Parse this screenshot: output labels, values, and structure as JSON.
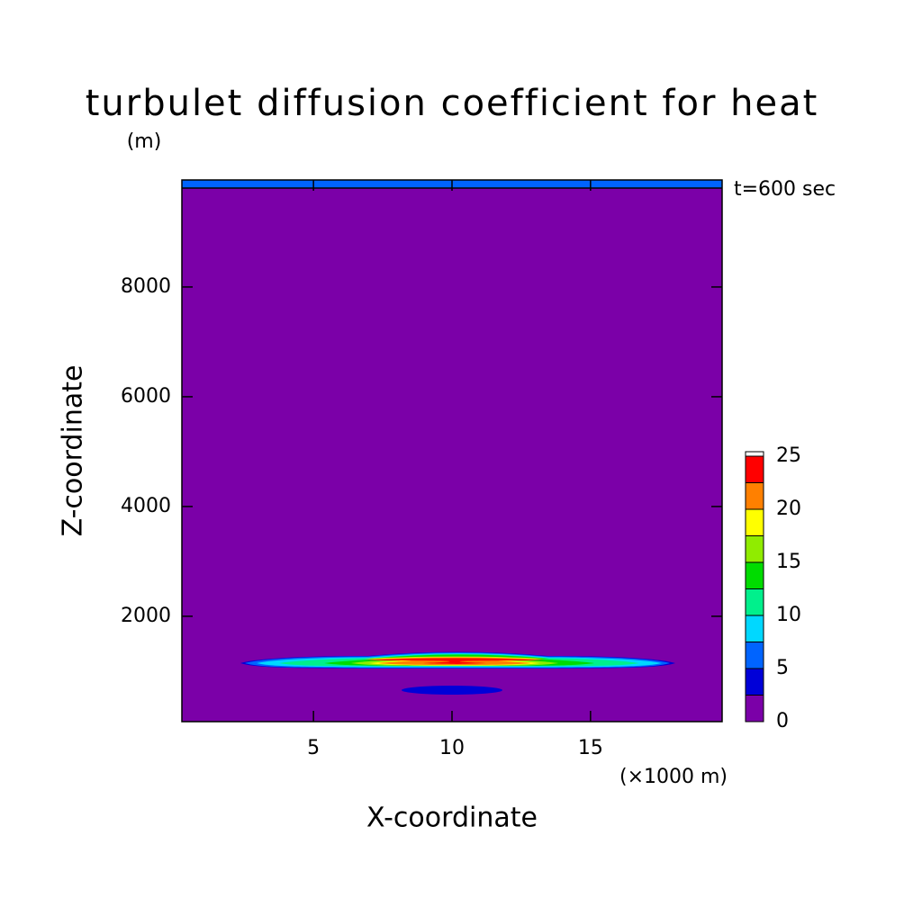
{
  "chart_data": {
    "type": "contour",
    "title": "turbulet diffusion coefficient for heat",
    "y_unit": "(m)",
    "annotation": "t=600 sec",
    "xlabel": "X-coordinate",
    "x_unit": "(×1000 m)",
    "ylabel": "Z-coordinate",
    "xlim": [
      0.25,
      19.75
    ],
    "xticks": [
      5,
      10,
      15
    ],
    "ylim": [
      80,
      9950
    ],
    "yticks": [
      2000,
      4000,
      6000,
      8000
    ],
    "levels": [
      0,
      2.5,
      5,
      7.5,
      10,
      12.5,
      15,
      17.5,
      20,
      22.5,
      25
    ],
    "colors": [
      "#7b00a8",
      "#0000d8",
      "#0064ff",
      "#00d8ff",
      "#00f08c",
      "#00dc00",
      "#90ec00",
      "#ffff00",
      "#ff8000",
      "#ff0000"
    ],
    "colorbar_ticks": [
      0,
      5,
      10,
      15,
      20,
      25
    ]
  }
}
